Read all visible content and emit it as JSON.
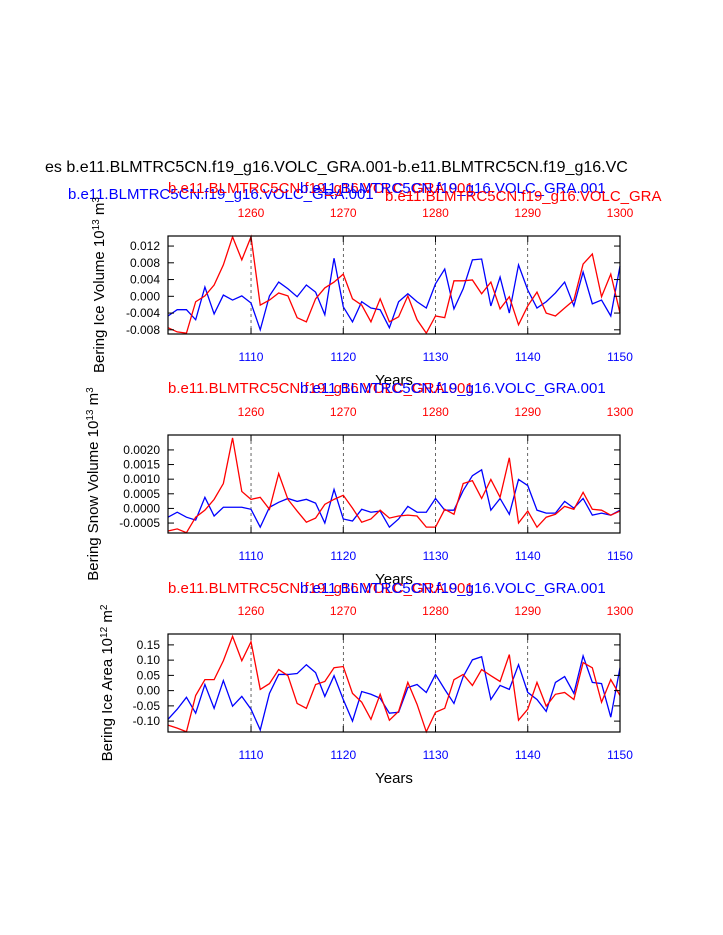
{
  "title": "es b.e11.BLMTRC5CN.f19_g16.VOLC_GRA.001-b.e11.BLMTRC5CN.f19_g16.VC",
  "chart_data": [
    {
      "type": "line",
      "subtitles": [
        {
          "text": "b.e11.BLMTRC5CN.f19_g16.VOLC_GRA.001",
          "color": "blue"
        },
        {
          "text": "b.e11.BLMTRC5CN.f19_g16.VOLC_GRA.001",
          "color": "red"
        },
        {
          "text": "b.e11.BLMTRC5CN.f19_g16.VOLC_GRA.001",
          "color": "blue"
        },
        {
          "text": "b.e11.BLMTRC5CN.f19_g16.VOLC_GRA",
          "color": "red"
        }
      ],
      "ylabel": [
        "Bering Ice Volume 10",
        "13",
        " m",
        "3"
      ],
      "xlabel": "Years",
      "xlim": [
        1101,
        1150
      ],
      "xticks": [
        1110,
        1120,
        1130,
        1140,
        1150
      ],
      "x2lim": [
        1251,
        1300
      ],
      "x2ticks": [
        1260,
        1270,
        1280,
        1290,
        1300
      ],
      "ylim": [
        -0.009,
        0.0144
      ],
      "yticks": [
        -0.008,
        -0.004,
        {
          "value": 0,
          "label": "0.000"
        },
        0.004,
        0.008,
        0.012
      ],
      "grid": true,
      "series": [
        {
          "color": "blue",
          "axis": "x",
          "x": [
            1101,
            1102,
            1103,
            1104,
            1105,
            1106,
            1107,
            1108,
            1109,
            1110,
            1111,
            1112,
            1113,
            1114,
            1115,
            1116,
            1117,
            1118,
            1119,
            1120,
            1121,
            1122,
            1123,
            1124,
            1125,
            1126,
            1127,
            1128,
            1129,
            1130,
            1131,
            1132,
            1133,
            1134,
            1135,
            1136,
            1137,
            1138,
            1139,
            1140,
            1141,
            1142,
            1143,
            1144,
            1145,
            1146,
            1147,
            1148,
            1149,
            1150
          ],
          "values": [
            -0.0047,
            -0.0032,
            -0.0032,
            -0.0056,
            0.0022,
            -0.0042,
            0.0003,
            -0.0009,
            0.0001,
            -0.0016,
            -0.008,
            0.0001,
            0.0034,
            0.0018,
            -0.0001,
            0.0027,
            0.001,
            -0.0044,
            0.0091,
            -0.0025,
            -0.0061,
            -0.0013,
            -0.0028,
            -0.0032,
            -0.0075,
            -0.0013,
            0.0006,
            -0.0013,
            -0.0028,
            0.003,
            0.0065,
            -0.003,
            0.0018,
            0.0087,
            0.0089,
            -0.0023,
            0.0046,
            -0.004,
            0.0075,
            0.0015,
            -0.0028,
            -0.0013,
            0.0008,
            0.0034,
            -0.0023,
            0.0058,
            -0.0018,
            -0.0009,
            -0.0047,
            0.0072
          ]
        },
        {
          "color": "red",
          "axis": "x2",
          "x": [
            1251,
            1252,
            1253,
            1254,
            1255,
            1256,
            1257,
            1258,
            1259,
            1260,
            1261,
            1262,
            1263,
            1264,
            1265,
            1266,
            1267,
            1268,
            1269,
            1270,
            1271,
            1272,
            1273,
            1274,
            1275,
            1276,
            1277,
            1278,
            1279,
            1280,
            1281,
            1282,
            1283,
            1284,
            1285,
            1286,
            1287,
            1288,
            1289,
            1290,
            1291,
            1292,
            1293,
            1294,
            1295,
            1296,
            1297,
            1298,
            1299,
            1300
          ],
          "values": [
            -0.0075,
            -0.0085,
            -0.0088,
            -0.0013,
            0.0001,
            0.0027,
            0.0075,
            0.0142,
            0.0087,
            0.0142,
            -0.0021,
            -0.0009,
            0.0008,
            0.0001,
            -0.0051,
            -0.0061,
            -0.0006,
            0.002,
            0.0034,
            0.0053,
            -0.0006,
            -0.0021,
            -0.0061,
            -0.0006,
            -0.0061,
            -0.0049,
            0.0001,
            -0.0056,
            -0.0088,
            -0.0047,
            -0.0051,
            0.0037,
            0.0037,
            0.0039,
            0.0006,
            0.0034,
            -0.003,
            -0.0001,
            -0.0068,
            -0.0023,
            0.001,
            -0.004,
            -0.0047,
            -0.0028,
            -0.0009,
            0.0077,
            0.0101,
            -0.0001,
            0.0053,
            -0.004
          ]
        }
      ]
    },
    {
      "type": "line",
      "subtitles": [
        {
          "text": "b.e11.BLMTRC5CN.f19_g16.VOLC_GRA.001",
          "color": "red"
        },
        {
          "text": "b.e11.BLMTRC5CN.f19_g16.VOLC_GRA.001",
          "color": "blue"
        }
      ],
      "ylabel": [
        "Bering Snow Volume 10",
        "13",
        " m",
        "3"
      ],
      "xlabel": "Years",
      "xlim": [
        1101,
        1150
      ],
      "xticks": [
        1110,
        1120,
        1130,
        1140,
        1150
      ],
      "x2lim": [
        1251,
        1300
      ],
      "x2ticks": [
        1260,
        1270,
        1280,
        1290,
        1300
      ],
      "ylim": [
        -0.00084,
        0.00251
      ],
      "yticks": [
        -0.0005,
        {
          "value": 0,
          "label": "0.0000"
        },
        0.0005,
        {
          "value": 0.001,
          "label": "0.0010"
        },
        0.0015,
        {
          "value": 0.002,
          "label": "0.0020"
        }
      ],
      "grid": true,
      "series": [
        {
          "color": "blue",
          "axis": "x",
          "x": [
            1101,
            1102,
            1103,
            1104,
            1105,
            1106,
            1107,
            1108,
            1109,
            1110,
            1111,
            1112,
            1113,
            1114,
            1115,
            1116,
            1117,
            1118,
            1119,
            1120,
            1121,
            1122,
            1123,
            1124,
            1125,
            1126,
            1127,
            1128,
            1129,
            1130,
            1131,
            1132,
            1133,
            1134,
            1135,
            1136,
            1137,
            1138,
            1139,
            1140,
            1141,
            1142,
            1143,
            1144,
            1145,
            1146,
            1147,
            1148,
            1149,
            1150
          ],
          "values": [
            -0.0003,
            -0.00013,
            -0.0003,
            -0.0004,
            0.00038,
            -0.00026,
            4e-05,
            4e-05,
            4e-05,
            -3e-05,
            -0.00064,
            4e-05,
            0.00021,
            0.00034,
            0.00024,
            0.00031,
            0.00018,
            -0.0005,
            0.00065,
            -0.00036,
            -0.00043,
            -3e-05,
            -0.00013,
            -9e-05,
            -0.00064,
            -0.00036,
            7e-05,
            -0.00013,
            -0.00013,
            0.00034,
            -6e-05,
            -6e-05,
            0.00061,
            0.00112,
            0.00132,
            -6e-05,
            0.00034,
            -0.0002,
            0.00099,
            0.00078,
            -6e-05,
            -0.00016,
            -0.00016,
            0.00024,
            1e-05,
            0.00034,
            -0.00023,
            -0.00016,
            -0.00023,
            -6e-05
          ]
        },
        {
          "color": "red",
          "axis": "x2",
          "x": [
            1251,
            1252,
            1253,
            1254,
            1255,
            1256,
            1257,
            1258,
            1259,
            1260,
            1261,
            1262,
            1263,
            1264,
            1265,
            1266,
            1267,
            1268,
            1269,
            1270,
            1271,
            1272,
            1273,
            1274,
            1275,
            1276,
            1277,
            1278,
            1279,
            1280,
            1281,
            1282,
            1283,
            1284,
            1285,
            1286,
            1287,
            1288,
            1289,
            1290,
            1291,
            1292,
            1293,
            1294,
            1295,
            1296,
            1297,
            1298,
            1299,
            1300
          ],
          "values": [
            -0.00077,
            -0.0007,
            -0.00083,
            -0.0003,
            -6e-05,
            0.00031,
            0.00085,
            0.00241,
            0.00058,
            0.00031,
            0.00038,
            -3e-05,
            0.00119,
            0.00031,
            -9e-05,
            -0.00047,
            -0.00033,
            0.00014,
            0.00031,
            0.00045,
            1e-05,
            -0.00047,
            -0.00036,
            -6e-05,
            -0.00033,
            -0.00026,
            -0.00023,
            -0.00026,
            -0.00064,
            -0.00064,
            -3e-05,
            -0.0002,
            0.00085,
            0.00095,
            0.00034,
            0.00099,
            0.00038,
            0.00173,
            -0.0005,
            -9e-05,
            -0.00064,
            -0.0003,
            -0.0002,
            7e-05,
            -3e-05,
            0.00055,
            -3e-05,
            -6e-05,
            -0.00023,
            -9e-05
          ]
        }
      ]
    },
    {
      "type": "line",
      "subtitles": [
        {
          "text": "b.e11.BLMTRC5CN.f19_g16.VOLC_GRA.001",
          "color": "red"
        },
        {
          "text": "b.e11.BLMTRC5CN.f19_g16.VOLC_GRA.001",
          "color": "blue"
        }
      ],
      "ylabel": [
        "Bering Ice Area 10",
        "12",
        " m",
        "2"
      ],
      "xlabel": "Years",
      "xlim": [
        1101,
        1150
      ],
      "xticks": [
        1110,
        1120,
        1130,
        1140,
        1150
      ],
      "x2lim": [
        1251,
        1300
      ],
      "x2ticks": [
        1260,
        1270,
        1280,
        1290,
        1300
      ],
      "ylim": [
        -0.1357,
        0.1857
      ],
      "yticks": [
        {
          "value": -0.1,
          "label": "-0.10"
        },
        -0.05,
        {
          "value": 0,
          "label": "0.00"
        },
        0.05,
        {
          "value": 0.1,
          "label": "0.10"
        },
        0.15
      ],
      "grid": true,
      "series": [
        {
          "color": "blue",
          "axis": "x",
          "x": [
            1101,
            1102,
            1103,
            1104,
            1105,
            1106,
            1107,
            1108,
            1109,
            1110,
            1111,
            1112,
            1113,
            1114,
            1115,
            1116,
            1117,
            1118,
            1119,
            1120,
            1121,
            1122,
            1123,
            1124,
            1125,
            1126,
            1127,
            1128,
            1129,
            1130,
            1131,
            1132,
            1133,
            1134,
            1135,
            1136,
            1137,
            1138,
            1139,
            1140,
            1141,
            1142,
            1143,
            1144,
            1145,
            1146,
            1147,
            1148,
            1149,
            1150
          ],
          "values": [
            -0.094,
            -0.061,
            -0.022,
            -0.074,
            0.02,
            -0.058,
            0.033,
            -0.051,
            -0.019,
            -0.061,
            -0.129,
            -0.009,
            0.053,
            0.053,
            0.056,
            0.085,
            0.059,
            -0.019,
            0.049,
            -0.029,
            -0.1,
            -0.003,
            -0.012,
            -0.025,
            -0.074,
            -0.071,
            0.01,
            0.02,
            -0.006,
            0.053,
            0.004,
            -0.042,
            0.046,
            0.101,
            0.111,
            -0.029,
            0.017,
            0.004,
            0.085,
            -0.006,
            -0.029,
            -0.068,
            0.027,
            0.046,
            -0.009,
            0.114,
            0.027,
            0.023,
            -0.087,
            0.075
          ]
        },
        {
          "color": "red",
          "axis": "x2",
          "x": [
            1251,
            1252,
            1253,
            1254,
            1255,
            1256,
            1257,
            1258,
            1259,
            1260,
            1261,
            1262,
            1263,
            1264,
            1265,
            1266,
            1267,
            1268,
            1269,
            1270,
            1271,
            1272,
            1273,
            1274,
            1275,
            1276,
            1277,
            1278,
            1279,
            1280,
            1281,
            1282,
            1283,
            1284,
            1285,
            1286,
            1287,
            1288,
            1289,
            1290,
            1291,
            1292,
            1293,
            1294,
            1295,
            1296,
            1297,
            1298,
            1299,
            1300
          ],
          "values": [
            -0.113,
            -0.123,
            -0.135,
            -0.016,
            0.036,
            0.036,
            0.098,
            0.178,
            0.098,
            0.16,
            0.004,
            0.023,
            0.069,
            0.049,
            -0.042,
            -0.058,
            0.02,
            0.03,
            0.075,
            0.079,
            -0.009,
            -0.038,
            -0.094,
            -0.012,
            -0.097,
            -0.068,
            0.027,
            -0.045,
            -0.135,
            -0.071,
            -0.058,
            0.036,
            0.053,
            0.017,
            0.069,
            0.049,
            0.03,
            0.118,
            -0.097,
            -0.061,
            0.027,
            -0.051,
            -0.012,
            -0.006,
            -0.029,
            0.092,
            0.075,
            -0.038,
            0.036,
            -0.016
          ]
        }
      ]
    }
  ]
}
